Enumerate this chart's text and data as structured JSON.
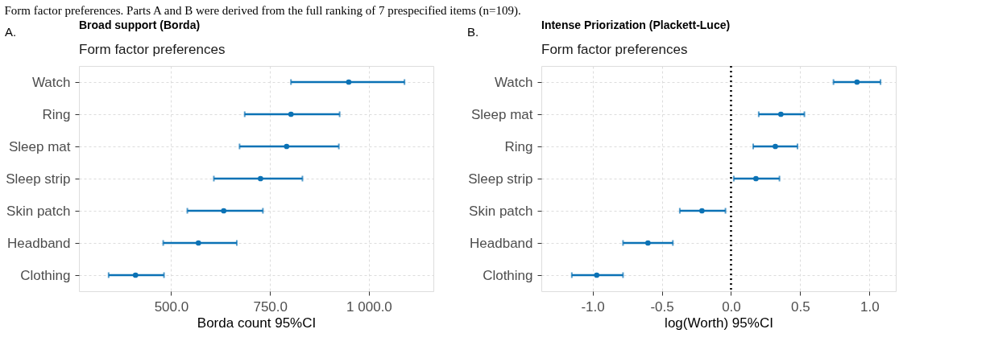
{
  "chart_data": [
    {
      "type": "scatter",
      "orientation": "horizontal",
      "title": "Broad support (Borda)",
      "subtitle": "Form factor preferences",
      "xlabel": "Borda count 95%CI",
      "annotations": [
        "A.",
        "Form factor preferences. Parts A and B were derived from the full ranking of 7 prespecified items (n=109)."
      ],
      "categories": [
        "Watch",
        "Ring",
        "Sleep mat",
        "Sleep strip",
        "Skin patch",
        "Headband",
        "Clothing"
      ],
      "series": [
        {
          "color": "#0b72b5",
          "values": [
            949,
            803,
            792,
            726,
            633,
            569,
            410
          ],
          "errors": [
            [
              803,
              1090
            ],
            [
              686,
              926
            ],
            [
              673,
              924
            ],
            [
              608,
              832
            ],
            [
              541,
              732
            ],
            [
              480,
              666
            ],
            [
              342,
              482
            ]
          ]
        }
      ],
      "xlim": [
        267,
        1163
      ],
      "xticks": [
        {
          "value": 500,
          "label": "500.0"
        },
        {
          "value": 750,
          "label": "750.0"
        },
        {
          "value": 1000,
          "label": "1 000.0"
        }
      ],
      "grid": true,
      "marker": "circle"
    },
    {
      "type": "scatter",
      "orientation": "horizontal",
      "title": "Intense Priorization (Plackett-Luce)",
      "subtitle": "Form factor preferences",
      "xlabel": "log(Worth) 95%CI",
      "annotations": [
        "B."
      ],
      "categories": [
        "Watch",
        "Sleep mat",
        "Ring",
        "Sleep strip",
        "Skin patch",
        "Headband",
        "Clothing"
      ],
      "series": [
        {
          "color": "#0b72b5",
          "values": [
            0.91,
            0.36,
            0.32,
            0.18,
            -0.21,
            -0.6,
            -0.97
          ],
          "errors": [
            [
              0.74,
              1.08
            ],
            [
              0.2,
              0.53
            ],
            [
              0.16,
              0.48
            ],
            [
              0.02,
              0.35
            ],
            [
              -0.37,
              -0.04
            ],
            [
              -0.78,
              -0.42
            ],
            [
              -1.15,
              -0.78
            ]
          ]
        }
      ],
      "xlim": [
        -1.37,
        1.19
      ],
      "xticks": [
        {
          "value": -1,
          "label": "-1.0"
        },
        {
          "value": -0.5,
          "label": "-0.5"
        },
        {
          "value": 0,
          "label": "0.0"
        },
        {
          "value": 0.5,
          "label": "0.5"
        },
        {
          "value": 1,
          "label": "1.0"
        }
      ],
      "ref_lines": [
        {
          "axis": "x",
          "value": 0,
          "color": "#000000",
          "line_style": "dotted"
        }
      ],
      "grid": true,
      "marker": "circle"
    }
  ]
}
